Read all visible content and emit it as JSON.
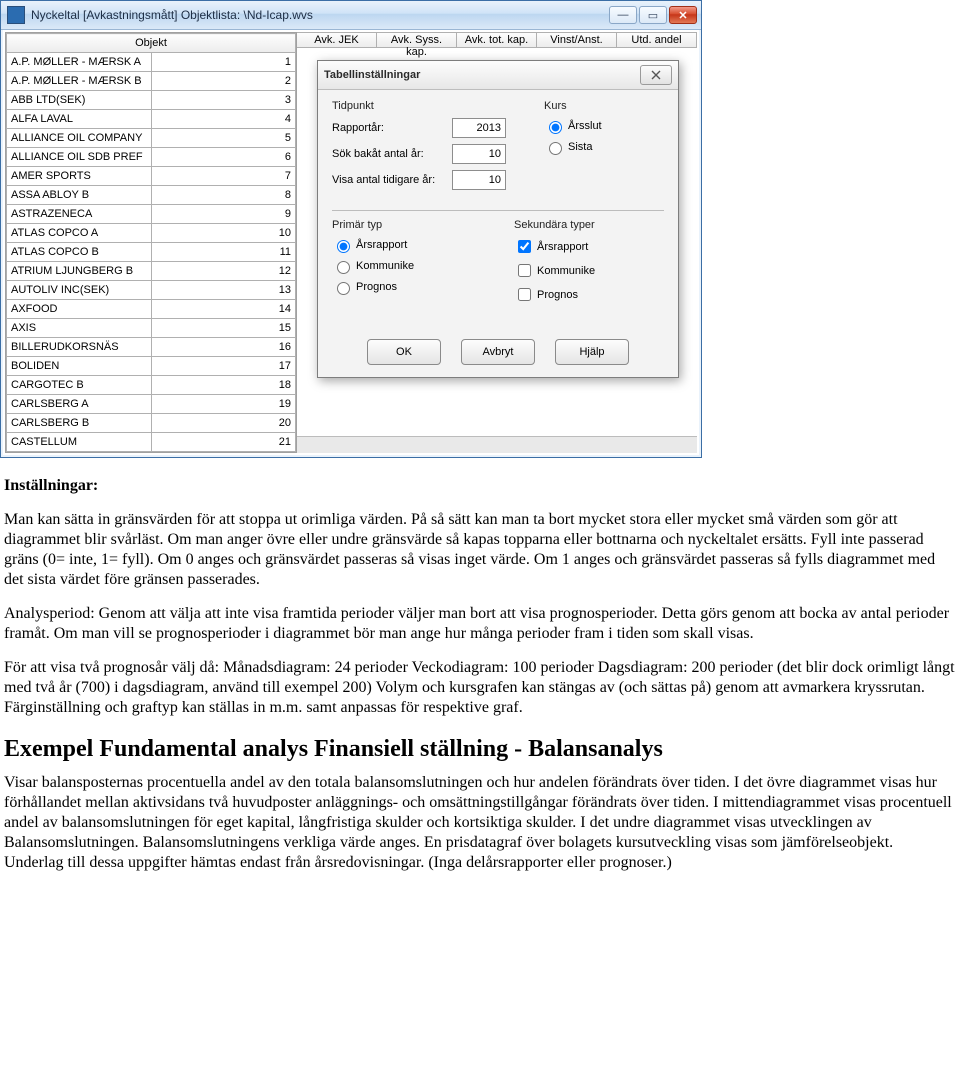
{
  "window": {
    "title": "Nyckeltal [Avkastningsmått] Objektlista: \\Nd-Icap.wvs"
  },
  "objects": {
    "header": "Objekt",
    "rows": [
      {
        "n": 1,
        "name": "A.P. MØLLER - MÆRSK A"
      },
      {
        "n": 2,
        "name": "A.P. MØLLER - MÆRSK B"
      },
      {
        "n": 3,
        "name": "ABB LTD(SEK)"
      },
      {
        "n": 4,
        "name": "ALFA LAVAL"
      },
      {
        "n": 5,
        "name": "ALLIANCE OIL COMPANY"
      },
      {
        "n": 6,
        "name": "ALLIANCE OIL SDB PREF"
      },
      {
        "n": 7,
        "name": "AMER SPORTS"
      },
      {
        "n": 8,
        "name": "ASSA ABLOY B"
      },
      {
        "n": 9,
        "name": "ASTRAZENECA"
      },
      {
        "n": 10,
        "name": "ATLAS COPCO A"
      },
      {
        "n": 11,
        "name": "ATLAS COPCO B"
      },
      {
        "n": 12,
        "name": "ATRIUM LJUNGBERG B"
      },
      {
        "n": 13,
        "name": "AUTOLIV INC(SEK)"
      },
      {
        "n": 14,
        "name": "AXFOOD"
      },
      {
        "n": 15,
        "name": "AXIS"
      },
      {
        "n": 16,
        "name": "BILLERUDKORSNÄS"
      },
      {
        "n": 17,
        "name": "BOLIDEN"
      },
      {
        "n": 18,
        "name": "CARGOTEC B"
      },
      {
        "n": 19,
        "name": "CARLSBERG A"
      },
      {
        "n": 20,
        "name": "CARLSBERG B"
      },
      {
        "n": 21,
        "name": "CASTELLUM"
      }
    ]
  },
  "columns": [
    "Avk. JEK",
    "Avk. Syss. kap.",
    "Avk. tot. kap.",
    "Vinst/Anst.",
    "Utd. andel"
  ],
  "dialog": {
    "title": "Tabellinställningar",
    "tidpunkt": {
      "label": "Tidpunkt",
      "rapportar_lbl": "Rapportår:",
      "rapportar_val": "2013",
      "sok_lbl": "Sök bakåt antal år:",
      "sok_val": "10",
      "visa_lbl": "Visa antal tidigare år:",
      "visa_val": "10"
    },
    "kurs": {
      "label": "Kurs",
      "opt1": "Årsslut",
      "opt2": "Sista"
    },
    "primar": {
      "label": "Primär typ",
      "o1": "Årsrapport",
      "o2": "Kommunike",
      "o3": "Prognos"
    },
    "sekundar": {
      "label": "Sekundära typer",
      "c1": "Årsrapport",
      "c2": "Kommunike",
      "c3": "Prognos"
    },
    "buttons": {
      "ok": "OK",
      "cancel": "Avbryt",
      "help": "Hjälp"
    }
  },
  "text": {
    "h_settings": "Inställningar:",
    "p1": "Man kan sätta in gränsvärden för att stoppa ut orimliga värden. På så sätt kan man ta bort mycket stora eller mycket små värden som gör att diagrammet blir svårläst. Om man anger övre eller undre gränsvärde så kapas topparna eller bottnarna och nyckeltalet ersätts. Fyll inte passerad gräns (0= inte, 1= fyll). Om 0 anges och gränsvärdet passeras så visas inget värde. Om 1 anges och gränsvärdet passeras så fylls diagrammet med det sista värdet före gränsen passerades.",
    "p2": "Analysperiod: Genom att välja att inte visa framtida perioder väljer man bort att visa prognosperioder. Detta görs genom att bocka av antal perioder framåt. Om man vill se prognosperioder i diagrammet bör man ange hur många perioder fram i tiden som skall visas.",
    "p3": "För att visa två prognosår välj då: Månadsdiagram: 24 perioder Veckodiagram: 100 perioder Dagsdiagram: 200 perioder (det blir dock orimligt långt med två år (700) i dagsdiagram, använd till exempel 200) Volym och kursgrafen kan stängas av (och sättas på) genom att avmarkera kryssrutan. Färginställning och graftyp kan ställas in m.m. samt anpassas för respektive graf.",
    "h2": "Exempel Fundamental analys Finansiell ställning - Balansanalys",
    "p4": "Visar balansposternas procentuella andel av den totala balansomslutningen och hur andelen förändrats över tiden. I det övre diagrammet visas hur förhållandet mellan aktivsidans två huvudposter anläggnings- och omsättningstillgångar förändrats över tiden. I mittendiagrammet visas procentuell andel av balansomslutningen för eget kapital, långfristiga skulder och kortsiktiga skulder. I det undre diagrammet visas utvecklingen av Balansomslutningen. Balansomslutningens verkliga värde anges. En prisdatagraf över bolagets kursutveckling visas som jämförelseobjekt. Underlag till dessa uppgifter hämtas endast från årsredovisningar. (Inga delårsrapporter eller prognoser.)"
  }
}
